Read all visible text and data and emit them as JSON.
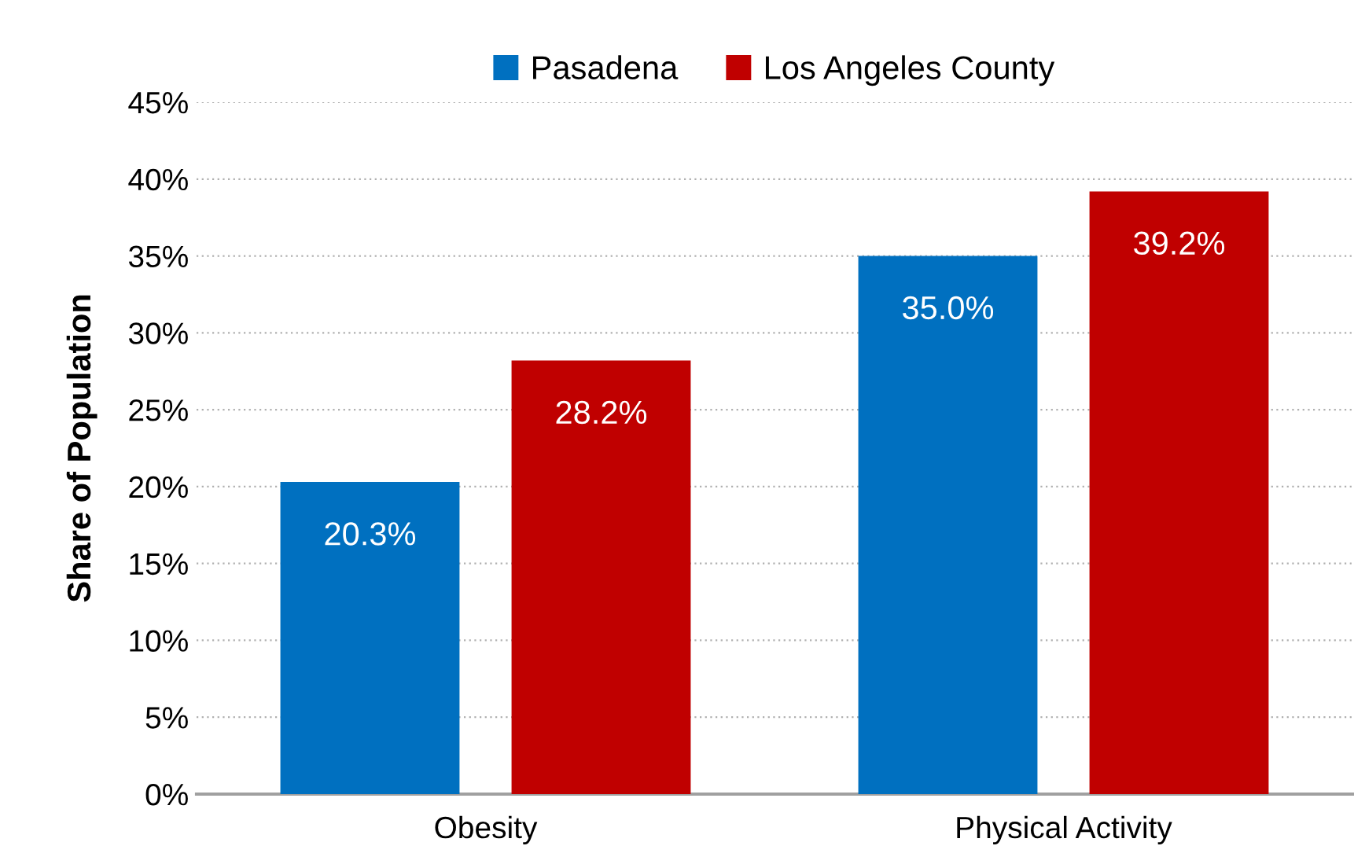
{
  "chart_data": {
    "type": "bar",
    "ylabel": "Share of Population",
    "categories": [
      "Obesity",
      "Physical Activity"
    ],
    "series": [
      {
        "name": "Pasadena",
        "color": "#0070c0",
        "values": [
          20.3,
          35.0
        ],
        "value_labels": [
          "20.3%",
          "35.0%"
        ]
      },
      {
        "name": "Los Angeles County",
        "color": "#c00000",
        "values": [
          28.2,
          39.2
        ],
        "value_labels": [
          "28.2%",
          "39.2%"
        ]
      }
    ],
    "ylim": [
      0,
      45
    ],
    "yticks": [
      {
        "value": 0,
        "label": "0%"
      },
      {
        "value": 5,
        "label": "5%"
      },
      {
        "value": 10,
        "label": "10%"
      },
      {
        "value": 15,
        "label": "15%"
      },
      {
        "value": 20,
        "label": "20%"
      },
      {
        "value": 25,
        "label": "25%"
      },
      {
        "value": 30,
        "label": "30%"
      },
      {
        "value": 35,
        "label": "35%"
      },
      {
        "value": 40,
        "label": "40%"
      },
      {
        "value": 45,
        "label": "45%"
      }
    ],
    "grid": "y",
    "legend": "top"
  }
}
